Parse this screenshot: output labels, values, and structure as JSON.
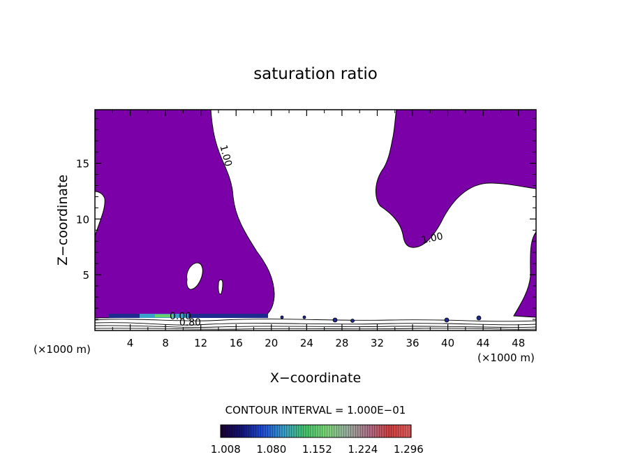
{
  "chart_data": {
    "type": "contour",
    "title": "saturation ratio",
    "xlabel": "X−coordinate",
    "ylabel": "Z−coordinate",
    "x_unit_left": "(×1000 m)",
    "x_unit_right": "(×1000 m)",
    "xlim": [
      0,
      50
    ],
    "ylim": [
      0,
      19.8
    ],
    "xticks": [
      4,
      8,
      12,
      16,
      20,
      24,
      28,
      32,
      36,
      40,
      44,
      48
    ],
    "yticks": [
      5,
      10,
      15
    ],
    "contour_labels": [
      {
        "text": "1.00",
        "x": 14.5,
        "z": 15.6
      },
      {
        "text": "1.00",
        "x": 38.3,
        "z": 8.0
      },
      {
        "text": "0.80",
        "x": 10.8,
        "z": 0.45
      },
      {
        "text": "0.00",
        "x": 9.7,
        "z": 1.0
      }
    ],
    "contour_interval_text": "CONTOUR INTERVAL = 1.000E−01",
    "colorbar": {
      "tick_labels": [
        "1.008",
        "1.080",
        "1.152",
        "1.224",
        "1.296"
      ],
      "range": [
        1.0,
        1.3
      ]
    },
    "colors": {
      "fill": "#7b00a8",
      "colorbar_stops": [
        "#1a0030",
        "#141477",
        "#1f4dd8",
        "#3aa0c8",
        "#45c56a",
        "#7ed87a",
        "#9ab0a0",
        "#b0708a",
        "#d04040",
        "#e26060"
      ]
    }
  }
}
